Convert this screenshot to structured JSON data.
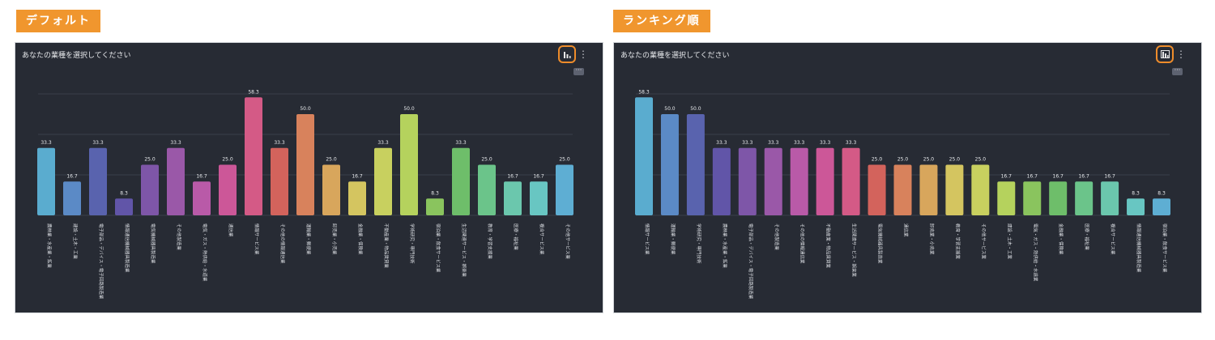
{
  "left_panel": {
    "tag": "デフォルト",
    "title": "あなたの業種を選択してください"
  },
  "right_panel": {
    "tag": "ランキング順",
    "title": "あなたの業種を選択してください"
  },
  "controls": {
    "toggle_icon": "bar-chart-icon",
    "more_icon": "more-icon",
    "more_label": "···",
    "extra_label": "⋮"
  },
  "colors": {
    "tag_bg": "#f0962e",
    "panel_bg": "#272b34",
    "highlight": "#ee8c2b"
  },
  "chart_data": [
    {
      "type": "bar",
      "categories": [
        "農林業・水産業・鉱業",
        "建設・土木・工業",
        "電子部品・デバイス・電子回路製造業",
        "情報通信機械器具製造業",
        "電気機械器具製造業",
        "その他製造業",
        "電気・ガス・熱供給・水道業",
        "通信業",
        "情報サービス業",
        "その他の情報通信業",
        "運輸業・郵便業",
        "卸売業・小売業",
        "金融業・保険業",
        "不動産業・物品賃貸業",
        "学術研究・専門技術",
        "宿泊業・飲食サービス業",
        "生活関連サービス・娯楽業",
        "教育・学習支援業",
        "医療・福祉業",
        "複合サービス業",
        "その他サービス業"
      ],
      "values": [
        33.3,
        16.7,
        33.3,
        8.3,
        25.0,
        33.3,
        16.7,
        25.0,
        58.3,
        33.3,
        50.0,
        25.0,
        16.7,
        33.3,
        50.0,
        8.3,
        33.3,
        25.0,
        16.7,
        16.7,
        25.0
      ],
      "value_labels": [
        "33.3",
        "16.7",
        "33.3",
        "8.3",
        "25.0",
        "33.3",
        "16.7",
        "25.0",
        "58.3",
        "33.3",
        "50.0",
        "25.0",
        "16.7",
        "33.3",
        "50.0",
        "8.3",
        "33.3",
        "25.0",
        "16.7",
        "16.7",
        "25.0"
      ],
      "colors": [
        "#5aaccf",
        "#5b8ac6",
        "#5963ae",
        "#6155a8",
        "#7e56a8",
        "#9a58a8",
        "#b95aa8",
        "#cc5798",
        "#d45a86",
        "#d3635c",
        "#d8825c",
        "#d8a65c",
        "#d4c560",
        "#c8d05f",
        "#b5d25d",
        "#8ac45e",
        "#6ebe6a",
        "#6bc48a",
        "#6bc7ad",
        "#68c6c2",
        "#5eaed3"
      ],
      "ylim": [
        0,
        70
      ]
    },
    {
      "type": "bar",
      "categories": [
        "情報サービス業",
        "運輸業・郵便業",
        "学術研究・専門技術",
        "農林業・水産業・鉱業",
        "電子部品・デバイス・電子回路製造業",
        "その他製造業",
        "その他の情報通信業",
        "不動産業・物品賃貸業",
        "生活関連サービス・娯楽業",
        "電気機械器具製造業",
        "通信業",
        "卸売業・小売業",
        "教育・学習支援業",
        "その他サービス業",
        "建設・土木・工業",
        "電気・ガス・熱供給・水道業",
        "金融業・保険業",
        "医療・福祉業",
        "複合サービス業",
        "情報通信機械器具製造業",
        "宿泊業・飲食サービス業"
      ],
      "values": [
        58.3,
        50.0,
        50.0,
        33.3,
        33.3,
        33.3,
        33.3,
        33.3,
        33.3,
        25.0,
        25.0,
        25.0,
        25.0,
        25.0,
        16.7,
        16.7,
        16.7,
        16.7,
        16.7,
        8.3,
        8.3
      ],
      "value_labels": [
        "58.3",
        "50.0",
        "50.0",
        "33.3",
        "33.3",
        "33.3",
        "33.3",
        "33.3",
        "33.3",
        "25.0",
        "25.0",
        "25.0",
        "25.0",
        "25.0",
        "16.7",
        "16.7",
        "16.7",
        "16.7",
        "16.7",
        "8.3",
        "8.3"
      ],
      "colors": [
        "#5aaccf",
        "#5b8ac6",
        "#5963ae",
        "#6155a8",
        "#7e56a8",
        "#9a58a8",
        "#b95aa8",
        "#cc5798",
        "#d45a86",
        "#d3635c",
        "#d8825c",
        "#d8a65c",
        "#d4c560",
        "#c8d05f",
        "#b5d25d",
        "#8ac45e",
        "#6ebe6a",
        "#6bc48a",
        "#6bc7ad",
        "#68c6c2",
        "#5eaed3"
      ],
      "ylim": [
        0,
        70
      ]
    }
  ]
}
